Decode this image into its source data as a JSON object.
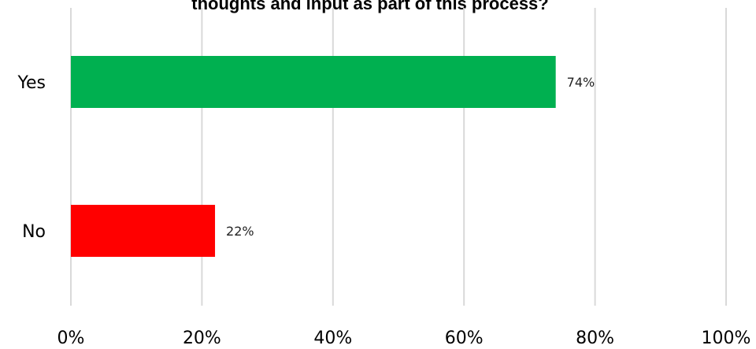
{
  "chart_data": {
    "type": "bar",
    "orientation": "horizontal",
    "title": "thoughts and input as part of this process?",
    "categories": [
      "Yes",
      "No"
    ],
    "values": [
      74,
      22
    ],
    "data_labels": [
      "74%",
      "22%"
    ],
    "colors": [
      "#00b050",
      "#ff0000"
    ],
    "xlim": [
      0,
      100
    ],
    "x_ticks": [
      0,
      20,
      40,
      60,
      80,
      100
    ],
    "x_tick_labels": [
      "0%",
      "20%",
      "40%",
      "60%",
      "80%",
      "100%"
    ],
    "grid": true,
    "legend": "none"
  }
}
